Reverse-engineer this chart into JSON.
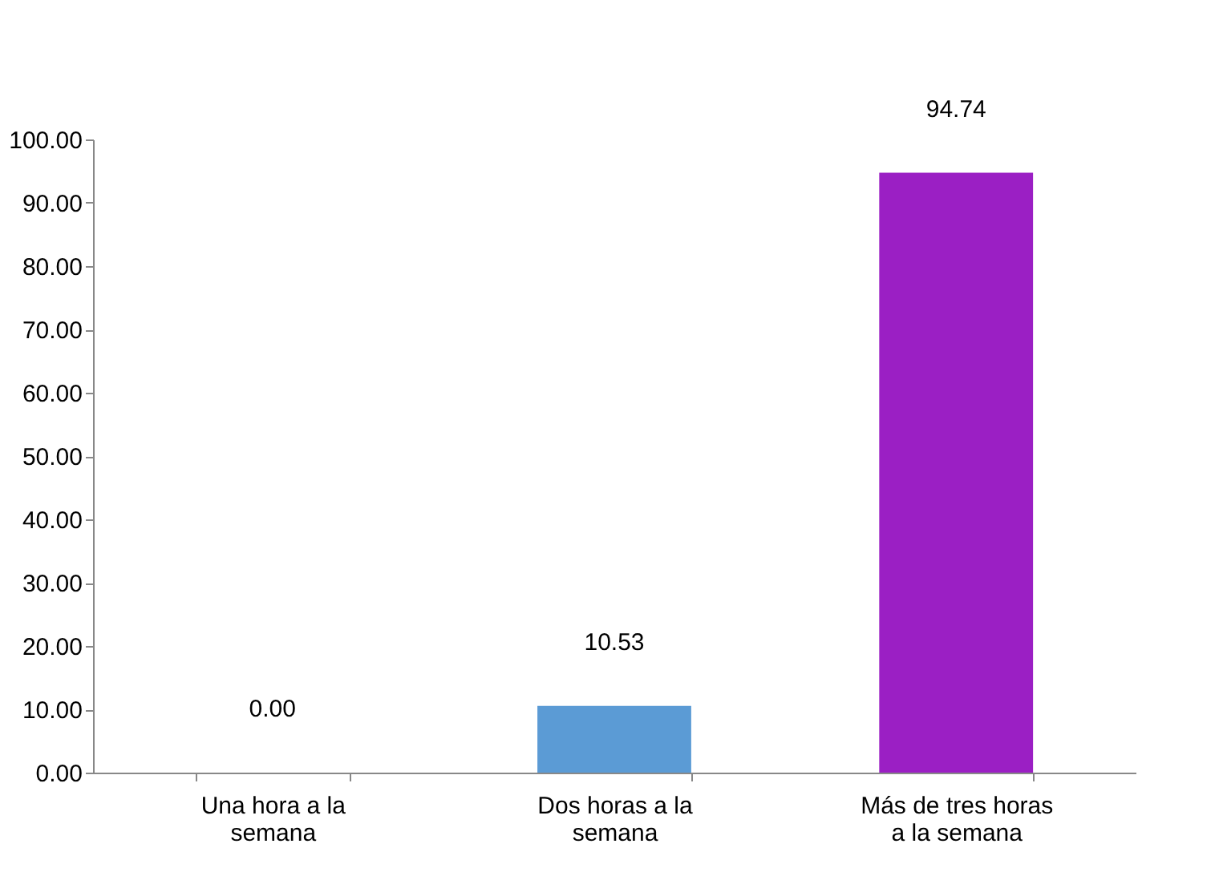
{
  "chart_data": {
    "type": "bar",
    "categories": [
      "Una hora a la semana",
      "Dos horas a la semana",
      "Más de tres horas a la semana"
    ],
    "values": [
      0.0,
      10.53,
      94.74
    ],
    "colors": [
      "#7f7f00",
      "#5b9bd5",
      "#9b1fc4"
    ],
    "ylim": [
      0,
      100
    ],
    "yticks": [
      {
        "value": 0,
        "label": "0.00"
      },
      {
        "value": 10,
        "label": "10.00"
      },
      {
        "value": 20,
        "label": "20.00"
      },
      {
        "value": 30,
        "label": "30.00"
      },
      {
        "value": 40,
        "label": "40.00"
      },
      {
        "value": 50,
        "label": "50.00"
      },
      {
        "value": 60,
        "label": "60.00"
      },
      {
        "value": 70,
        "label": "70.00"
      },
      {
        "value": 80,
        "label": "80.00"
      },
      {
        "value": 90,
        "label": "90.00"
      },
      {
        "value": 100,
        "label": "100.00"
      }
    ],
    "value_labels": [
      "0.00",
      "10.53",
      "94.74"
    ],
    "grid": false
  }
}
